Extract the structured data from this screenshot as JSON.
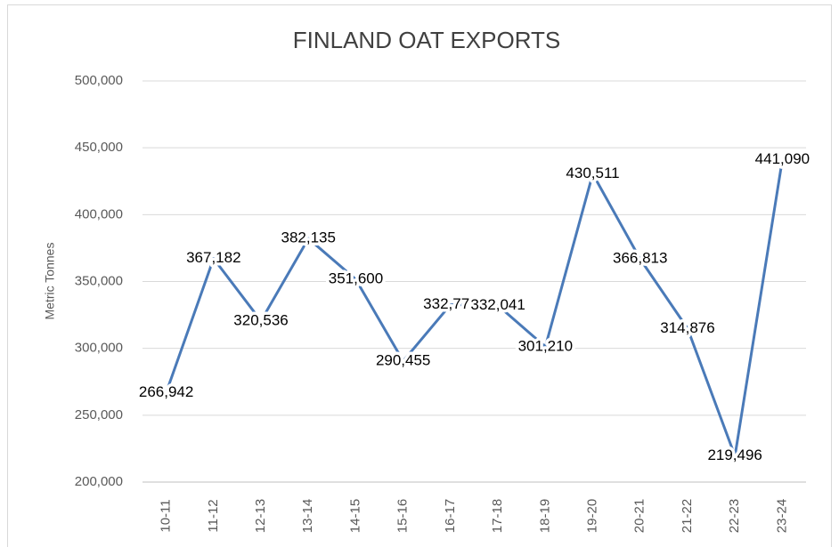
{
  "chart_data": {
    "type": "line",
    "title": "FINLAND OAT EXPORTS",
    "y_label": "Metric Tonnes",
    "categories": [
      "10-11",
      "11-12",
      "12-13",
      "13-14",
      "14-15",
      "15-16",
      "16-17",
      "17-18",
      "18-19",
      "19-20",
      "20-21",
      "21-22",
      "22-23",
      "23-24"
    ],
    "values": [
      266942,
      367182,
      320536,
      382135,
      351600,
      290455,
      332771,
      332041,
      301210,
      430511,
      366813,
      314876,
      219496,
      441090
    ],
    "value_labels": [
      "266,942",
      "367,182",
      "320,536",
      "382,135",
      "351,600",
      "290,455",
      "332,771",
      "332,041",
      "301,210",
      "430,511",
      "366,813",
      "314,876",
      "219,496",
      "441,090"
    ],
    "color": "#4a7ab8",
    "ylim": [
      200000,
      500000
    ],
    "yticks": [
      {
        "value": 200000,
        "label": "200,000"
      },
      {
        "value": 250000,
        "label": "250,000"
      },
      {
        "value": 300000,
        "label": "300,000"
      },
      {
        "value": 350000,
        "label": "350,000"
      },
      {
        "value": 400000,
        "label": "400,000"
      },
      {
        "value": 450000,
        "label": "450,000"
      },
      {
        "value": 500000,
        "label": "500,000"
      }
    ],
    "grid": true
  }
}
